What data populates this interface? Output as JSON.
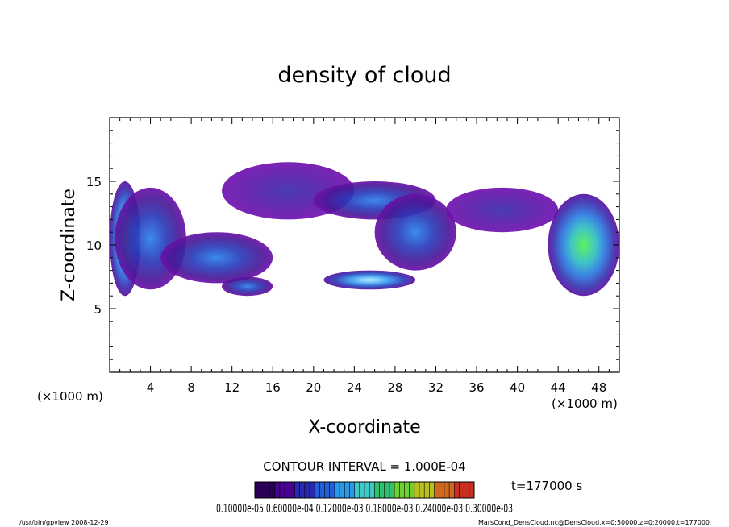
{
  "chart_data": {
    "type": "heatmap",
    "title": "density of cloud",
    "xlabel": "X-coordinate",
    "ylabel": "Z-coordinate",
    "x_unit_left": "(×1000 m)",
    "x_unit_right": "(×1000 m)",
    "xlim": [
      0,
      50
    ],
    "ylim": [
      0,
      20
    ],
    "xticks": [
      4,
      8,
      12,
      16,
      20,
      24,
      28,
      32,
      36,
      40,
      44,
      48
    ],
    "yticks": [
      5,
      10,
      15
    ],
    "contour_interval": "CONTOUR INTERVAL = 1.000E-04",
    "time": "t=177000 s",
    "colorbar_labels": "0.10000e-05 0.60000e-04 0.12000e-03 0.18000e-03 0.24000e-03 0.30000e-03",
    "colorbar_colors": [
      "#2a0057",
      "#4a0090",
      "#2a2ab0",
      "#1f5fd8",
      "#2a9ae8",
      "#40c8c8",
      "#30c070",
      "#70d030",
      "#b8c020",
      "#d06820",
      "#c83020"
    ],
    "cloud_regions": [
      {
        "x": [
          0,
          3
        ],
        "z": [
          6,
          15
        ],
        "peak": "green"
      },
      {
        "x": [
          0.5,
          7.5
        ],
        "z": [
          6.5,
          14.5
        ],
        "peak": "blue"
      },
      {
        "x": [
          5,
          16
        ],
        "z": [
          7,
          11
        ],
        "peak": "blue"
      },
      {
        "x": [
          11,
          16
        ],
        "z": [
          6,
          7.5
        ],
        "peak": "blue"
      },
      {
        "x": [
          11,
          24
        ],
        "z": [
          12,
          16.5
        ],
        "peak": "violet"
      },
      {
        "x": [
          21,
          30
        ],
        "z": [
          6.5,
          8
        ],
        "peak": "light-blue"
      },
      {
        "x": [
          20,
          32
        ],
        "z": [
          12,
          15
        ],
        "peak": "blue"
      },
      {
        "x": [
          26,
          34
        ],
        "z": [
          8,
          14
        ],
        "peak": "blue"
      },
      {
        "x": [
          33,
          44
        ],
        "z": [
          11,
          14.5
        ],
        "peak": "violet"
      },
      {
        "x": [
          43,
          50
        ],
        "z": [
          6,
          14
        ],
        "peak": "green"
      }
    ]
  },
  "footer": {
    "left": "/usr/bin/gpview   2008-12-29",
    "right": "MarsCond_DensCloud.nc@DensCloud,x=0:50000,z=0:20000,t=177000"
  }
}
